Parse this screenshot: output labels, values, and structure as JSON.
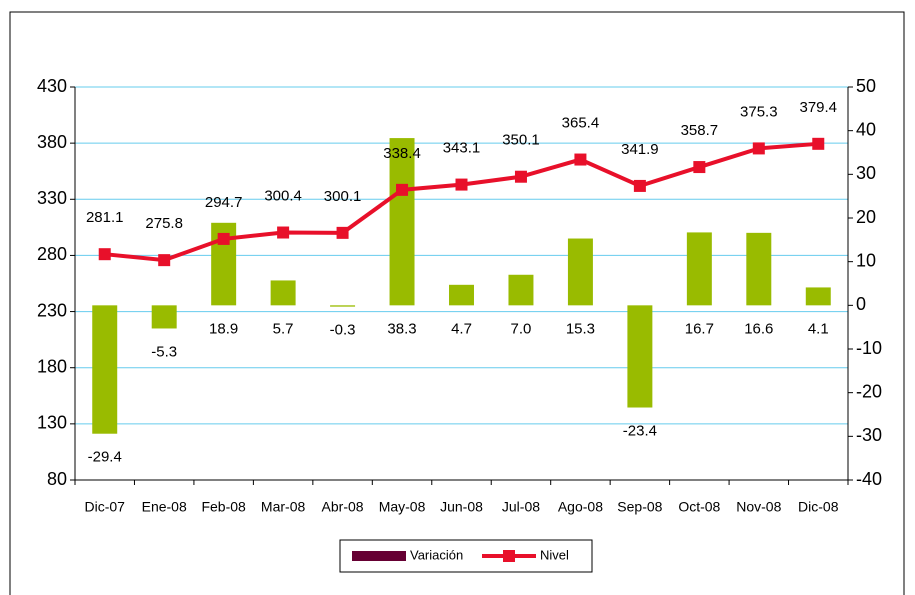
{
  "chart_data": {
    "type": "bar-line",
    "categories": [
      "Dic-07",
      "Ene-08",
      "Feb-08",
      "Mar-08",
      "Abr-08",
      "May-08",
      "Jun-08",
      "Jul-08",
      "Ago-08",
      "Sep-08",
      "Oct-08",
      "Nov-08",
      "Dic-08"
    ],
    "series": [
      {
        "name": "Variación",
        "type": "bar",
        "axis": "y2",
        "color": "#99bb00",
        "legend_color": "#660033",
        "values": [
          -29.4,
          -5.3,
          18.9,
          5.7,
          -0.3,
          38.3,
          4.7,
          7.0,
          15.3,
          -23.4,
          16.7,
          16.6,
          4.1
        ],
        "value_labels": [
          "-29.4",
          "-5.3",
          "18.9",
          "5.7",
          "-0.3",
          "38.3",
          "4.7",
          "7.0",
          "15.3",
          "-23.4",
          "16.7",
          "16.6",
          "4.1"
        ]
      },
      {
        "name": "Nivel",
        "type": "line",
        "axis": "y",
        "color": "#e8102a",
        "values": [
          281.1,
          275.8,
          294.7,
          300.4,
          300.1,
          338.4,
          343.1,
          350.1,
          365.4,
          341.9,
          358.7,
          375.3,
          379.4
        ]
      }
    ],
    "ylim": [
      80,
      430
    ],
    "yticks": [
      80,
      130,
      180,
      230,
      280,
      330,
      380,
      430
    ],
    "y2lim": [
      -40,
      50
    ],
    "y2ticks": [
      -40,
      -30,
      -20,
      -10,
      0,
      10,
      20,
      30,
      40,
      50
    ],
    "grid": true,
    "grid_color": "#66ccee"
  }
}
